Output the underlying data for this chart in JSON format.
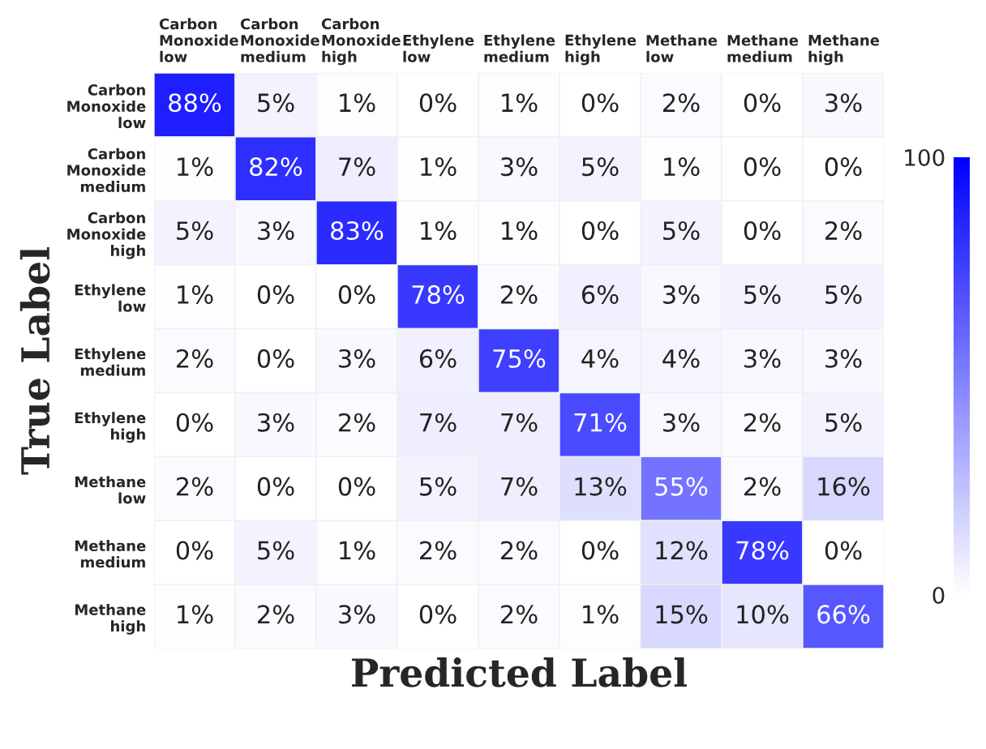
{
  "chart_data": {
    "type": "heatmap",
    "xlabel": "Predicted Label",
    "ylabel": "True Label",
    "categories": [
      "Carbon Monoxide low",
      "Carbon Monoxide medium",
      "Carbon Monoxide high",
      "Ethylene low",
      "Ethylene medium",
      "Ethylene high",
      "Methane low",
      "Methane medium",
      "Methane high"
    ],
    "y_categories": [
      "Carbon Monoxide low",
      "Carbon Monoxide medium",
      "Carbon Monoxide high",
      "Ethylene low",
      "Ethylene medium",
      "Ethylene high",
      "Methane low",
      "Methane medium",
      "Methane high"
    ],
    "cells": [
      [
        88,
        5,
        1,
        0,
        1,
        0,
        2,
        0,
        3
      ],
      [
        1,
        82,
        7,
        1,
        3,
        5,
        1,
        0,
        0
      ],
      [
        5,
        3,
        83,
        1,
        1,
        0,
        5,
        0,
        2
      ],
      [
        1,
        0,
        0,
        78,
        2,
        6,
        3,
        5,
        5
      ],
      [
        2,
        0,
        3,
        6,
        75,
        4,
        4,
        3,
        3
      ],
      [
        0,
        3,
        2,
        7,
        7,
        71,
        3,
        2,
        5
      ],
      [
        2,
        0,
        0,
        5,
        7,
        13,
        55,
        2,
        16
      ],
      [
        0,
        5,
        1,
        2,
        2,
        0,
        12,
        78,
        0
      ],
      [
        1,
        2,
        3,
        0,
        2,
        1,
        15,
        10,
        66
      ]
    ],
    "cell_labels": [
      [
        "88%",
        "5%",
        "1%",
        "0%",
        "1%",
        "0%",
        "2%",
        "0%",
        "3%"
      ],
      [
        "1%",
        "82%",
        "7%",
        "1%",
        "3%",
        "5%",
        "1%",
        "0%",
        "0%"
      ],
      [
        "5%",
        "3%",
        "83%",
        "1%",
        "1%",
        "0%",
        "5%",
        "0%",
        "2%"
      ],
      [
        "1%",
        "0%",
        "0%",
        "78%",
        "2%",
        "6%",
        "3%",
        "5%",
        "5%"
      ],
      [
        "2%",
        "0%",
        "3%",
        "6%",
        "75%",
        "4%",
        "4%",
        "3%",
        "3%"
      ],
      [
        "0%",
        "3%",
        "2%",
        "7%",
        "7%",
        "71%",
        "3%",
        "2%",
        "5%"
      ],
      [
        "2%",
        "0%",
        "0%",
        "5%",
        "7%",
        "13%",
        "55%",
        "2%",
        "16%"
      ],
      [
        "0%",
        "5%",
        "1%",
        "2%",
        "2%",
        "0%",
        "12%",
        "78%",
        "0%"
      ],
      [
        "1%",
        "2%",
        "3%",
        "0%",
        "2%",
        "1%",
        "15%",
        "10%",
        "66%"
      ]
    ],
    "clim": [
      0,
      100
    ],
    "cticks": [
      0,
      100
    ]
  }
}
